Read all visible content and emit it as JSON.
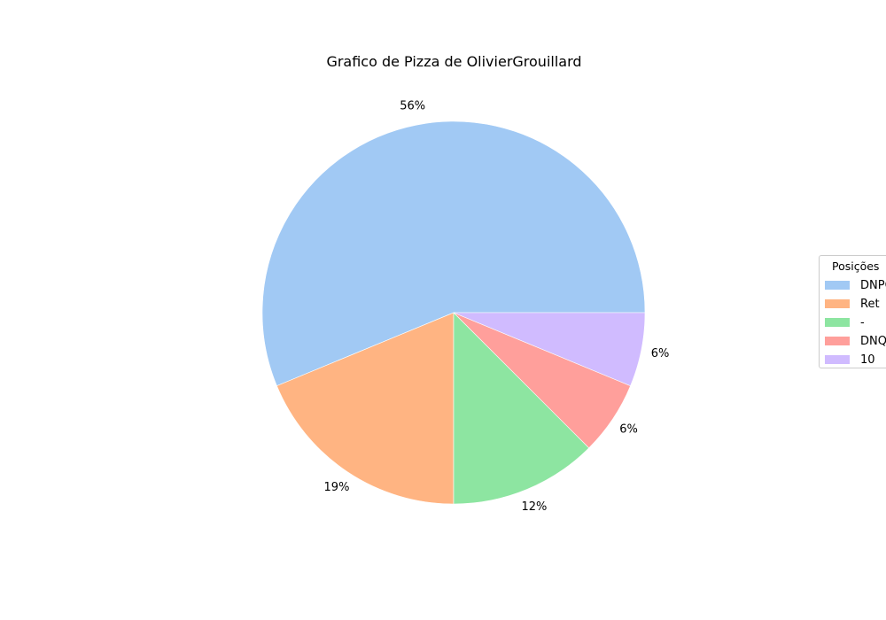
{
  "chart_data": {
    "type": "pie",
    "title": "Grafico de Pizza de OlivierGrouillard",
    "legend_title": "Posições",
    "legend_position": "right",
    "slices": [
      {
        "label": "DNPQ",
        "value": 56.25,
        "pct_label": "56%",
        "color": "#a1c9f4"
      },
      {
        "label": "Ret",
        "value": 18.75,
        "pct_label": "19%",
        "color": "#ffb482"
      },
      {
        "label": "-",
        "value": 12.5,
        "pct_label": "12%",
        "color": "#8de5a1"
      },
      {
        "label": "DNQ",
        "value": 6.25,
        "pct_label": "6%",
        "color": "#ff9f9b"
      },
      {
        "label": "10",
        "value": 6.25,
        "pct_label": "6%",
        "color": "#d0bbff"
      }
    ]
  }
}
